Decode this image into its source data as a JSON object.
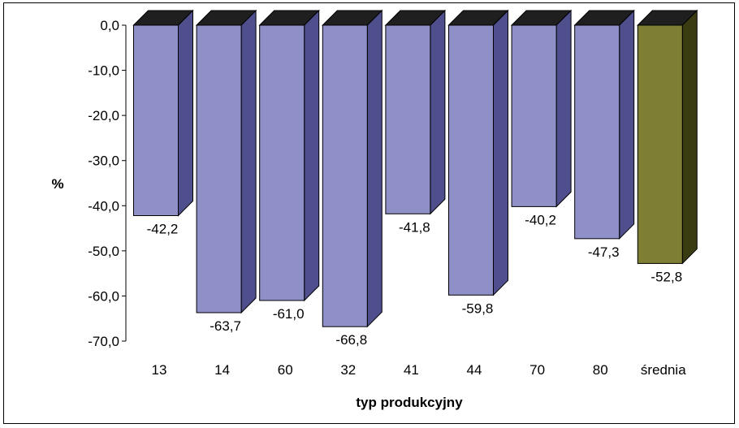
{
  "chart_data": {
    "type": "bar",
    "title": "",
    "xlabel": "typ produkcyjny",
    "ylabel": "%",
    "categories": [
      "13",
      "14",
      "60",
      "32",
      "41",
      "44",
      "70",
      "80",
      "średnia"
    ],
    "values": [
      -42.2,
      -63.7,
      -61.0,
      -66.8,
      -41.8,
      -59.8,
      -40.2,
      -47.3,
      -52.8
    ],
    "value_labels": [
      "-42,2",
      "-63,7",
      "-61,0",
      "-66,8",
      "-41,8",
      "-59,8",
      "-40,2",
      "-47,3",
      "-52,8"
    ],
    "ylim": [
      -70,
      0
    ],
    "yticks": [
      0,
      -10,
      -20,
      -30,
      -40,
      -50,
      -60,
      -70
    ],
    "ytick_labels": [
      "0,0",
      "-10,0",
      "-20,0",
      "-30,0",
      "-40,0",
      "-50,0",
      "-60,0",
      "-70,0"
    ],
    "grid": false,
    "legend": "none",
    "style": "3d",
    "colors": {
      "bar_front": "#8f90c8",
      "bar_side": "#4e4f8c",
      "bar_top": "#1f1f1f",
      "highlight_front": "#7e7f35",
      "highlight_side": "#3b3b12",
      "highlight_top": "#1f1f1f"
    },
    "highlight_category": "średnia"
  }
}
